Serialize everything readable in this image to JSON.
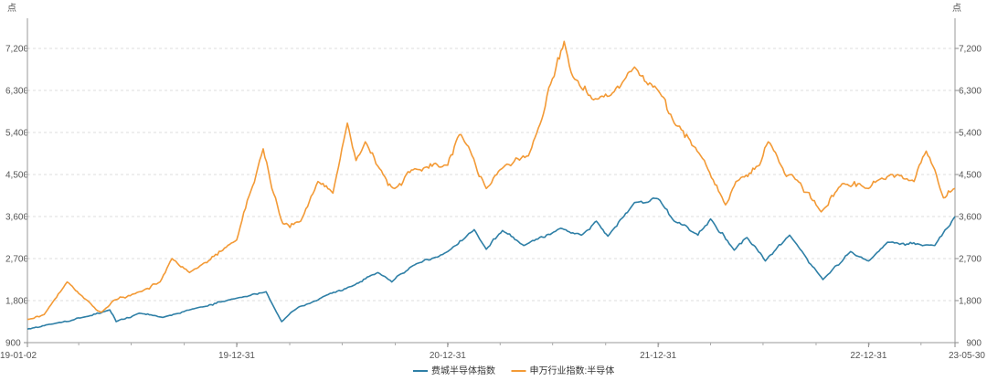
{
  "chart_data": {
    "type": "line",
    "y_unit": "点",
    "ylim": [
      900,
      7650
    ],
    "yticks": [
      900,
      1800,
      2700,
      3600,
      4500,
      5400,
      6300,
      7200
    ],
    "ytick_labels": [
      "900",
      "1,800",
      "2,700",
      "3,600",
      "4,500",
      "5,400",
      "6,300",
      "7,200"
    ],
    "x_range": [
      "2019-01-02",
      "2023-05-30"
    ],
    "xticks": [
      {
        "date": "2019-01-02",
        "label": "19-01-02"
      },
      {
        "date": "2019-12-31",
        "label": "19-12-31"
      },
      {
        "date": "2020-12-31",
        "label": "20-12-31"
      },
      {
        "date": "2021-12-31",
        "label": "21-12-31"
      },
      {
        "date": "2022-12-31",
        "label": "22-12-31"
      },
      {
        "date": "2023-05-30",
        "label": "23-05-30"
      }
    ],
    "grid": "horizontal-dashed",
    "legend_position": "bottom",
    "series": [
      {
        "name": "费城半导体指数",
        "color": "#2e7fa6",
        "points": [
          [
            "2019-01-02",
            1190
          ],
          [
            "2019-02-15",
            1300
          ],
          [
            "2019-04-15",
            1460
          ],
          [
            "2019-05-25",
            1600
          ],
          [
            "2019-06-05",
            1350
          ],
          [
            "2019-07-15",
            1530
          ],
          [
            "2019-08-25",
            1440
          ],
          [
            "2019-10-15",
            1620
          ],
          [
            "2019-12-31",
            1850
          ],
          [
            "2020-02-20",
            1990
          ],
          [
            "2020-03-18",
            1350
          ],
          [
            "2020-04-15",
            1650
          ],
          [
            "2020-06-01",
            1900
          ],
          [
            "2020-07-20",
            2120
          ],
          [
            "2020-09-01",
            2400
          ],
          [
            "2020-09-25",
            2200
          ],
          [
            "2020-11-01",
            2550
          ],
          [
            "2020-12-31",
            2850
          ],
          [
            "2021-02-15",
            3320
          ],
          [
            "2021-03-08",
            2900
          ],
          [
            "2021-04-05",
            3300
          ],
          [
            "2021-05-12",
            2980
          ],
          [
            "2021-07-15",
            3350
          ],
          [
            "2021-08-20",
            3200
          ],
          [
            "2021-09-15",
            3500
          ],
          [
            "2021-10-05",
            3180
          ],
          [
            "2021-11-20",
            3900
          ],
          [
            "2021-12-31",
            3980
          ],
          [
            "2022-01-28",
            3500
          ],
          [
            "2022-03-10",
            3200
          ],
          [
            "2022-04-01",
            3550
          ],
          [
            "2022-05-12",
            2880
          ],
          [
            "2022-06-03",
            3150
          ],
          [
            "2022-07-05",
            2650
          ],
          [
            "2022-08-16",
            3200
          ],
          [
            "2022-10-13",
            2250
          ],
          [
            "2022-11-30",
            2850
          ],
          [
            "2022-12-31",
            2650
          ],
          [
            "2023-02-02",
            3050
          ],
          [
            "2023-04-25",
            2980
          ],
          [
            "2023-05-30",
            3600
          ]
        ]
      },
      {
        "name": "申万行业指数:半导体",
        "color": "#f39a36",
        "points": [
          [
            "2019-01-02",
            1400
          ],
          [
            "2019-01-31",
            1500
          ],
          [
            "2019-03-12",
            2200
          ],
          [
            "2019-04-10",
            1850
          ],
          [
            "2019-05-10",
            1550
          ],
          [
            "2019-05-31",
            1800
          ],
          [
            "2019-07-20",
            2000
          ],
          [
            "2019-08-20",
            2200
          ],
          [
            "2019-09-10",
            2700
          ],
          [
            "2019-10-10",
            2400
          ],
          [
            "2019-12-31",
            3100
          ],
          [
            "2020-02-15",
            5050
          ],
          [
            "2020-03-01",
            4200
          ],
          [
            "2020-03-20",
            3450
          ],
          [
            "2020-04-20",
            3500
          ],
          [
            "2020-05-20",
            4350
          ],
          [
            "2020-06-15",
            4100
          ],
          [
            "2020-07-10",
            5600
          ],
          [
            "2020-07-25",
            4800
          ],
          [
            "2020-08-10",
            5200
          ],
          [
            "2020-09-10",
            4500
          ],
          [
            "2020-09-30",
            4200
          ],
          [
            "2020-11-01",
            4600
          ],
          [
            "2020-12-31",
            4700
          ],
          [
            "2021-01-20",
            5350
          ],
          [
            "2021-02-05",
            5100
          ],
          [
            "2021-03-08",
            4200
          ],
          [
            "2021-04-10",
            4700
          ],
          [
            "2021-05-20",
            4900
          ],
          [
            "2021-06-15",
            5800
          ],
          [
            "2021-07-10",
            7000
          ],
          [
            "2021-07-21",
            7350
          ],
          [
            "2021-08-05",
            6600
          ],
          [
            "2021-09-10",
            6100
          ],
          [
            "2021-10-10",
            6200
          ],
          [
            "2021-11-20",
            6800
          ],
          [
            "2021-12-31",
            6300
          ],
          [
            "2022-01-28",
            5600
          ],
          [
            "2022-03-15",
            4900
          ],
          [
            "2022-04-27",
            3850
          ],
          [
            "2022-05-15",
            4350
          ],
          [
            "2022-06-25",
            4700
          ],
          [
            "2022-07-10",
            5200
          ],
          [
            "2022-08-01",
            4700
          ],
          [
            "2022-08-20",
            4500
          ],
          [
            "2022-10-10",
            3700
          ],
          [
            "2022-11-15",
            4300
          ],
          [
            "2022-12-31",
            4200
          ],
          [
            "2023-01-20",
            4400
          ],
          [
            "2023-02-20",
            4500
          ],
          [
            "2023-03-20",
            4350
          ],
          [
            "2023-04-10",
            5000
          ],
          [
            "2023-04-25",
            4600
          ],
          [
            "2023-05-10",
            4000
          ],
          [
            "2023-05-30",
            4200
          ]
        ]
      }
    ]
  }
}
